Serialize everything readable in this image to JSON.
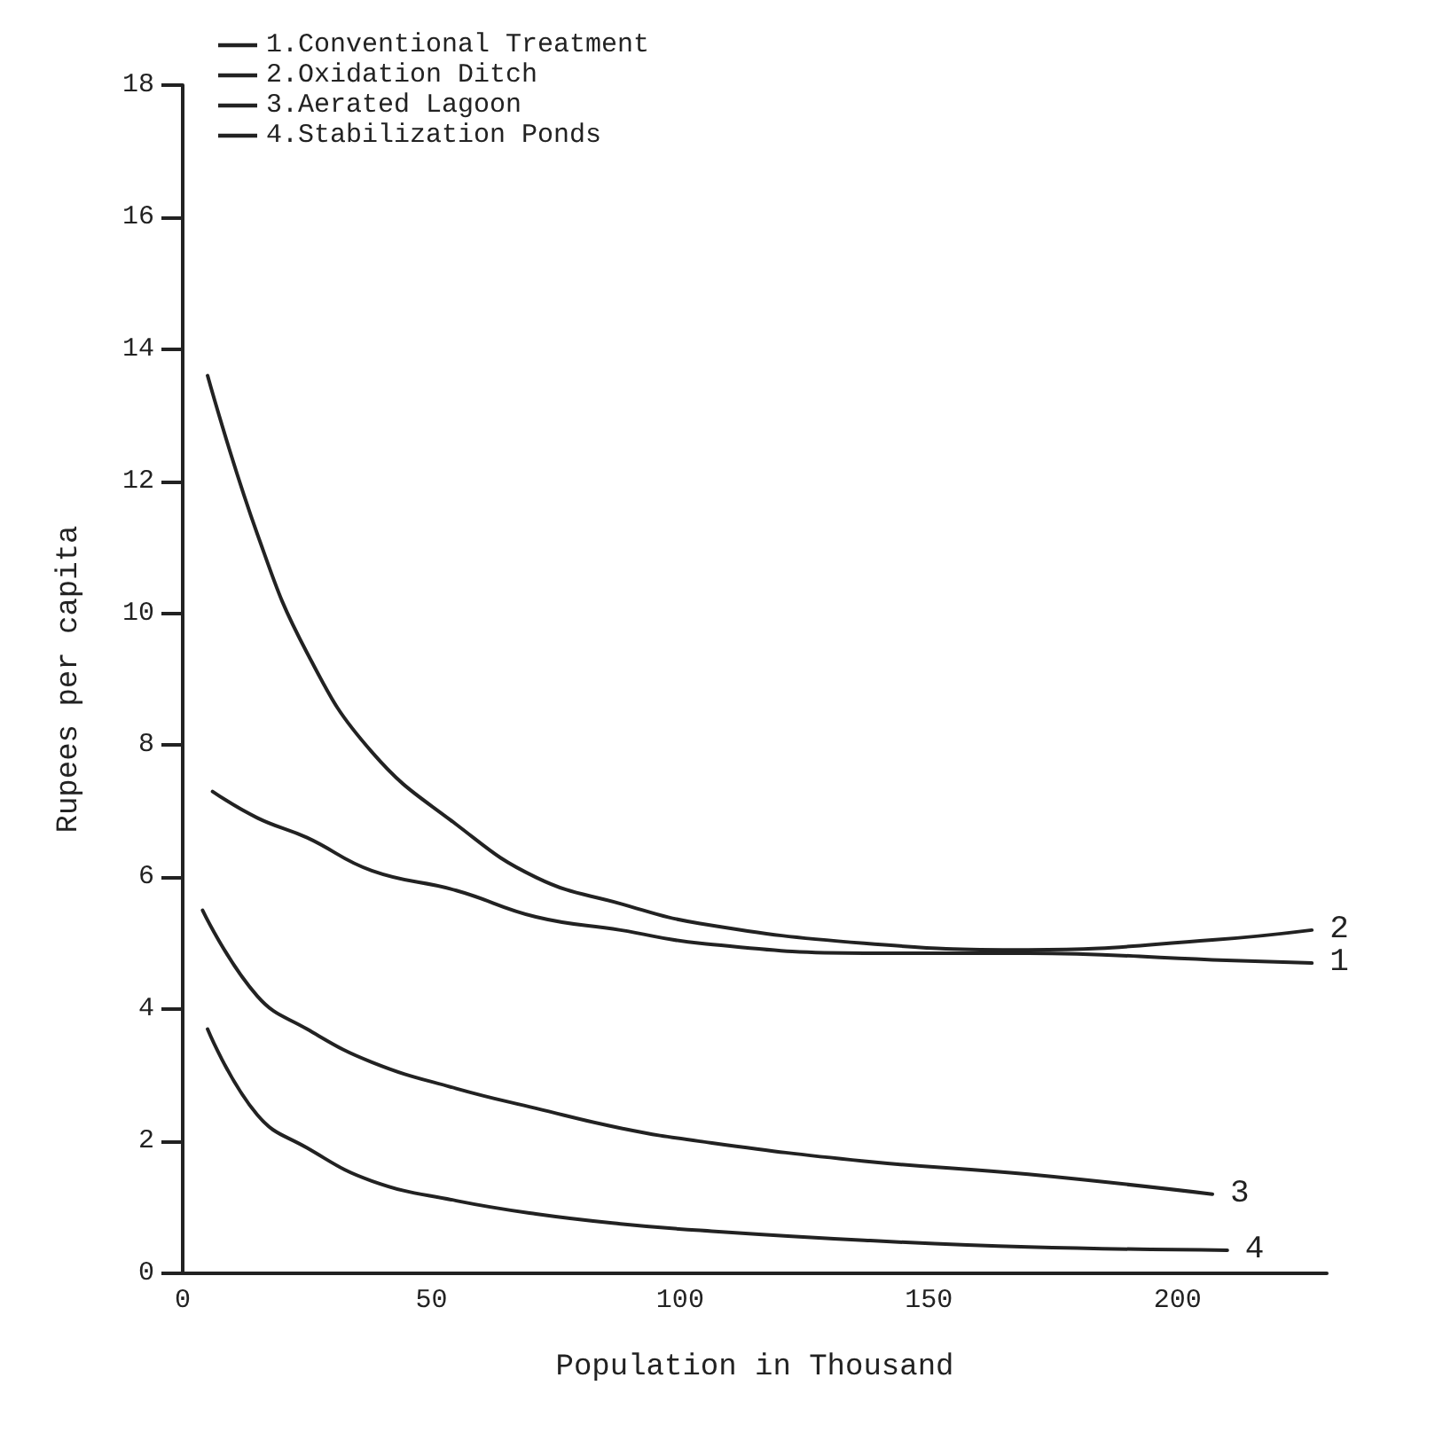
{
  "chart_data": {
    "type": "line",
    "xlabel": "Population in Thousand",
    "ylabel": "Rupees per capita",
    "xlim": [
      0,
      230
    ],
    "xticks": [
      0,
      50,
      100,
      150,
      200
    ],
    "ylim": [
      0,
      18
    ],
    "yticks": [
      0,
      2,
      4,
      6,
      8,
      10,
      12,
      14,
      16,
      18
    ],
    "grid": false,
    "legend": "top left",
    "marker": "none",
    "line_style": "solid",
    "series": [
      {
        "name": "1.Conventional Treatment",
        "color": "#222222",
        "x": [
          6,
          15,
          25,
          38,
          55,
          71,
          88,
          104,
          137,
          170,
          207,
          227
        ],
        "values": [
          7.3,
          6.9,
          6.6,
          6.1,
          5.8,
          5.4,
          5.2,
          5.0,
          4.85,
          4.85,
          4.75,
          4.7
        ]
      },
      {
        "name": "2.Oxidation Ditch",
        "color": "#222222",
        "x": [
          5,
          15,
          25,
          38,
          55,
          71,
          88,
          104,
          137,
          170,
          207,
          227
        ],
        "values": [
          13.6,
          11.2,
          9.4,
          7.9,
          6.8,
          6.0,
          5.6,
          5.3,
          5.0,
          4.9,
          5.05,
          5.2
        ]
      },
      {
        "name": "3.Aerated Lagoon",
        "color": "#222222",
        "x": [
          4,
          15,
          25,
          38,
          55,
          71,
          88,
          104,
          137,
          170,
          207
        ],
        "values": [
          5.5,
          4.2,
          3.7,
          3.2,
          2.8,
          2.5,
          2.2,
          2.0,
          1.7,
          1.5,
          1.2
        ]
      },
      {
        "name": "4.Stabilization Ponds",
        "color": "#222222",
        "x": [
          5,
          15,
          25,
          38,
          55,
          71,
          88,
          104,
          137,
          170,
          210
        ],
        "values": [
          3.7,
          2.4,
          1.9,
          1.4,
          1.1,
          0.9,
          0.75,
          0.65,
          0.5,
          0.4,
          0.35
        ]
      }
    ],
    "annotations": [
      {
        "text": "1",
        "x": 227,
        "y": 4.7
      },
      {
        "text": "2",
        "x": 227,
        "y": 5.2
      },
      {
        "text": "3",
        "x": 207,
        "y": 1.2
      },
      {
        "text": "4",
        "x": 210,
        "y": 0.35
      }
    ]
  }
}
